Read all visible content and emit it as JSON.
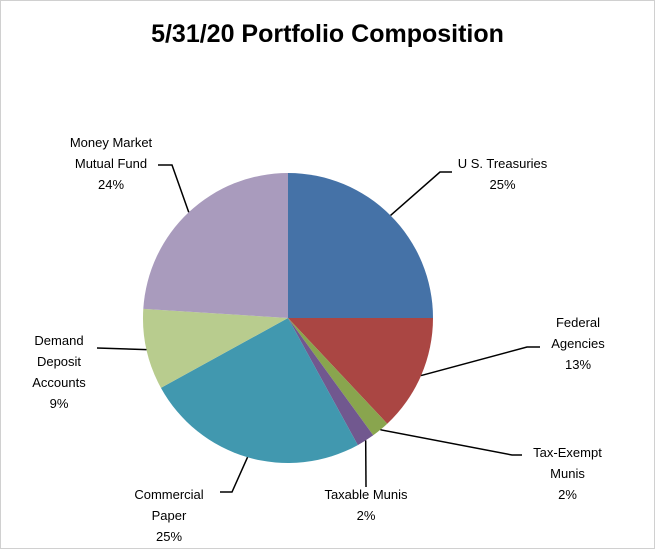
{
  "chart_data": {
    "type": "pie",
    "title": "5/31/20 Portfolio Composition",
    "categories": [
      "U S. Treasuries",
      "Federal Agencies",
      "Tax-Exempt Munis",
      "Taxable Munis",
      "Commercial Paper",
      "Demand Deposit Accounts",
      "Money Market Mutual Fund"
    ],
    "values": [
      25,
      13,
      2,
      2,
      25,
      9,
      24
    ],
    "value_labels": [
      "25%",
      "13%",
      "2%",
      "2%",
      "25%",
      "9%",
      "24%"
    ],
    "colors": [
      "#4572a7",
      "#aa4643",
      "#89a54e",
      "#71588f",
      "#4198af",
      "#b8cc8e",
      "#a99bbd"
    ]
  }
}
